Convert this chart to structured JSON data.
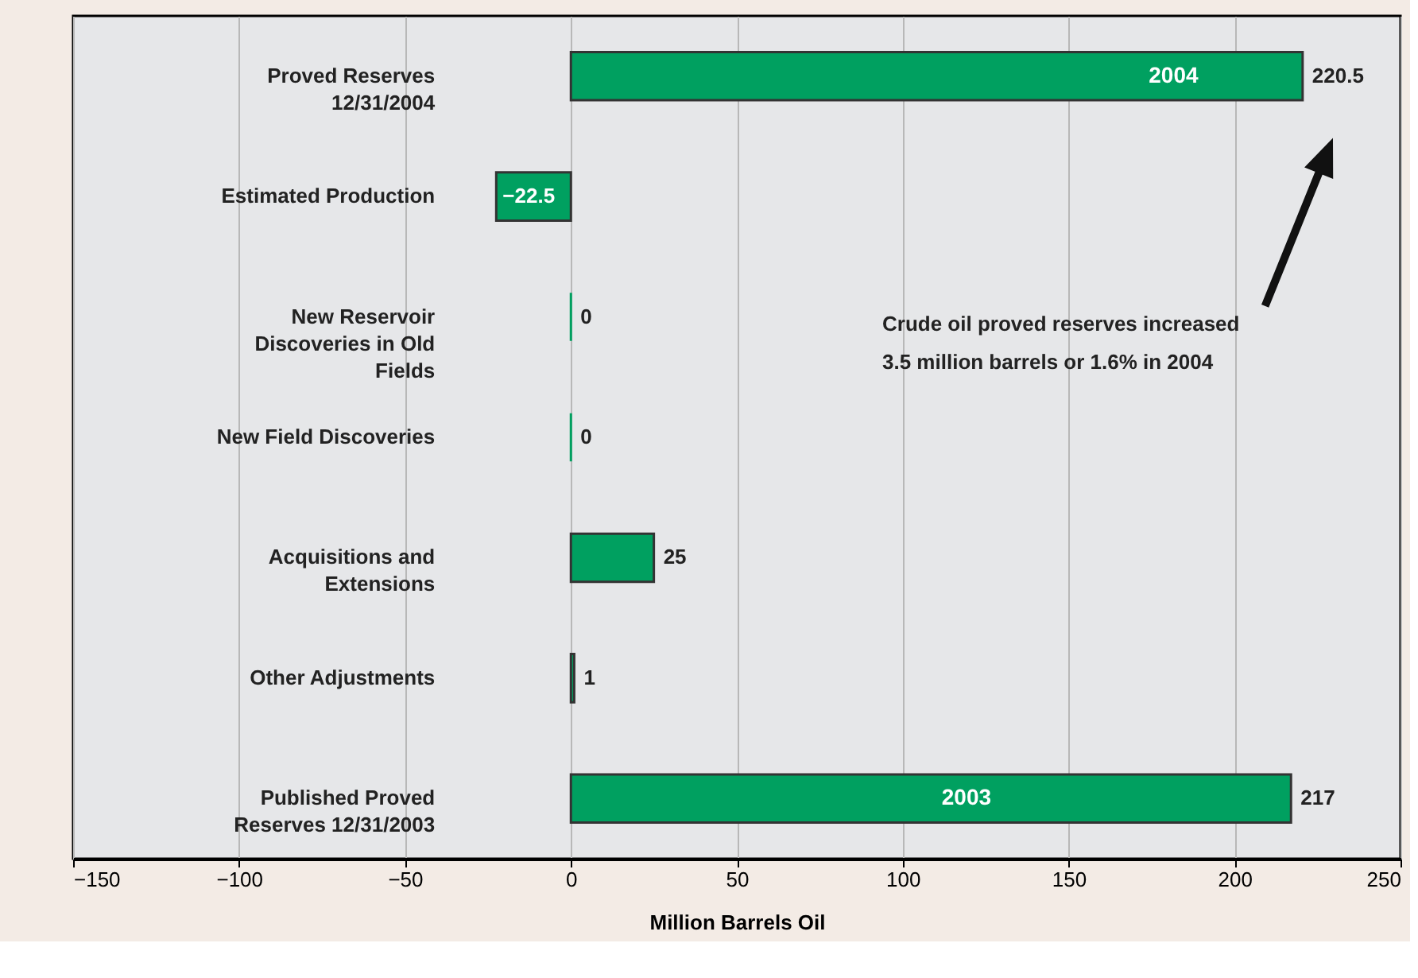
{
  "chart_data": {
    "type": "bar",
    "orientation": "horizontal",
    "categories": [
      "Proved Reserves 12/31/2004",
      "Estimated Production",
      "New Reservoir Discoveries in Old Fields",
      "New Field Discoveries",
      "Acquisitions and Extensions",
      "Other Adjustments",
      "Published Proved Reserves 12/31/2003"
    ],
    "values": [
      220.5,
      -22.5,
      0,
      0,
      25,
      1,
      217
    ],
    "color": "#00a060",
    "data_labels": true,
    "xlabel": "Million Barrels Oil",
    "xlim": [
      -150,
      250
    ],
    "xticks": [
      -150,
      -100,
      -50,
      0,
      50,
      100,
      150,
      200,
      250
    ],
    "grid": "x",
    "annotations": [
      "2004",
      "2003",
      "Crude oil proved reserves increased",
      "3.5 million barrels or 1.6% in 2004"
    ]
  }
}
